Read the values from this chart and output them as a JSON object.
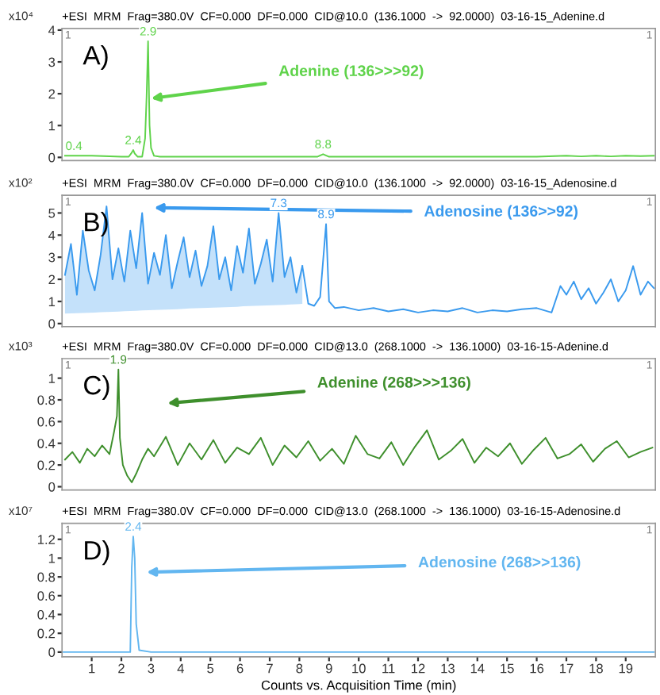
{
  "chart_data": [
    {
      "type": "line",
      "title": "+ESI  MRM  Frag=380.0V  CF=0.000  DF=0.000  CID@10.0  (136.1000  ->  92.0000)  03-16-15_Adenine.d",
      "ylabel": "x10⁴",
      "xlim": [
        0,
        20
      ],
      "ylim": [
        -0.1,
        4.05
      ],
      "yticks": [
        0,
        1,
        2,
        3,
        4
      ],
      "tick_labels": "y",
      "series": [
        {
          "color": "#5fd34a",
          "x": [
            0.1,
            0.4,
            1.0,
            2.0,
            2.25,
            2.35,
            2.4,
            2.45,
            2.55,
            2.7,
            2.8,
            2.85,
            2.9,
            2.95,
            3.0,
            3.1,
            3.3,
            4,
            5,
            6,
            7,
            8,
            8.6,
            8.8,
            9.0,
            10,
            12,
            14,
            16,
            17,
            17.5,
            18,
            18.5,
            19,
            19.5,
            19.95
          ],
          "values": [
            0.05,
            0.05,
            0.05,
            0.02,
            0.02,
            0.15,
            0.23,
            0.12,
            0.02,
            0.02,
            0.6,
            1.9,
            3.65,
            1.0,
            0.3,
            0.05,
            0.02,
            0.02,
            0.02,
            0.02,
            0.02,
            0.02,
            0.02,
            0.1,
            0.02,
            0.02,
            0.02,
            0.02,
            0.02,
            0.05,
            0.03,
            0.05,
            0.03,
            0.05,
            0.04,
            0.05
          ]
        }
      ],
      "annotations": [
        "1",
        "1",
        "A)",
        {
          "text": "Adenine (136>>>92)",
          "x": 3.0,
          "y": 1.85
        },
        {
          "text": "2.9",
          "x": 2.9,
          "y": 3.65
        },
        {
          "text": "2.4",
          "x": 2.4,
          "y": 0.23
        },
        {
          "text": "8.8",
          "x": 8.8,
          "y": 0.1
        },
        {
          "text": "0.4",
          "x": 0.4,
          "y": 0.05
        }
      ]
    },
    {
      "type": "line",
      "title": "+ESI  MRM  Frag=380.0V  CF=0.000  DF=0.000  CID@10.0  (136.1000  ->  92.0000)  03-16-15_Adenosine.d",
      "ylabel": "x10²",
      "xlim": [
        0,
        20
      ],
      "ylim": [
        -0.14,
        5.8
      ],
      "yticks": [
        0,
        1,
        2,
        3,
        4,
        5
      ],
      "tick_labels": "y",
      "series": [
        {
          "color": "#3a9aee",
          "x": [
            0.1,
            0.3,
            0.5,
            0.7,
            0.9,
            1.1,
            1.3,
            1.5,
            1.7,
            1.9,
            2.1,
            2.3,
            2.5,
            2.7,
            2.9,
            3.1,
            3.3,
            3.5,
            3.7,
            3.9,
            4.1,
            4.3,
            4.5,
            4.7,
            4.9,
            5.1,
            5.3,
            5.5,
            5.7,
            5.9,
            6.1,
            6.3,
            6.5,
            6.7,
            6.9,
            7.1,
            7.3,
            7.5,
            7.7,
            7.9,
            8.1
          ],
          "values": [
            2.2,
            3.6,
            1.3,
            4.2,
            2.4,
            1.5,
            3.1,
            5.3,
            2.0,
            3.4,
            1.9,
            4.2,
            2.5,
            5.0,
            1.8,
            3.2,
            2.2,
            4.0,
            1.6,
            2.8,
            3.9,
            2.1,
            3.3,
            1.7,
            2.6,
            4.4,
            2.0,
            3.0,
            1.5,
            3.5,
            2.3,
            4.3,
            1.8,
            2.7,
            3.8,
            1.9,
            5.0,
            2.1,
            3.0,
            1.4,
            2.6
          ],
          "upper": [
            2.2,
            3.6,
            1.3,
            4.2,
            2.4,
            1.5,
            3.1,
            5.3,
            2.0,
            3.4,
            1.9,
            4.2,
            2.5,
            5.0,
            1.8,
            3.2,
            2.2,
            4.0,
            1.6,
            2.8,
            3.9,
            2.1,
            3.3,
            1.7,
            2.6,
            4.4,
            2.0,
            3.0,
            1.5,
            3.5,
            2.3,
            4.3,
            1.8,
            2.7,
            3.8,
            1.9,
            5.0,
            2.1,
            3.0,
            1.4,
            2.6
          ],
          "lower": [
            0.45,
            0.46,
            0.47,
            0.48,
            0.49,
            0.5,
            0.51,
            0.52,
            0.53,
            0.54,
            0.56,
            0.57,
            0.58,
            0.59,
            0.6,
            0.61,
            0.62,
            0.63,
            0.64,
            0.65,
            0.67,
            0.68,
            0.69,
            0.7,
            0.71,
            0.72,
            0.73,
            0.74,
            0.75,
            0.76,
            0.78,
            0.79,
            0.8,
            0.81,
            0.82,
            0.83,
            0.84,
            0.85,
            0.86,
            0.87,
            0.89
          ]
        },
        {
          "color": "#3a9aee",
          "x": [
            8.1,
            8.3,
            8.5,
            8.7,
            8.9,
            9.0,
            9.2,
            9.5,
            10.0,
            10.5,
            11.0,
            11.5,
            12.0,
            12.5,
            13.0,
            13.5,
            14.0,
            14.5,
            15.0,
            15.5,
            16.0,
            16.5,
            16.8,
            17.0,
            17.25,
            17.5,
            17.75,
            18.0,
            18.25,
            18.5,
            18.75,
            19.0,
            19.25,
            19.5,
            19.75,
            19.95
          ],
          "values": [
            2.6,
            0.9,
            0.8,
            1.2,
            4.5,
            1.0,
            0.7,
            0.75,
            0.6,
            0.7,
            0.55,
            0.65,
            0.5,
            0.6,
            0.55,
            0.7,
            0.5,
            0.6,
            0.55,
            0.65,
            0.7,
            0.5,
            1.7,
            1.3,
            1.9,
            1.1,
            1.6,
            0.9,
            1.4,
            2.0,
            1.0,
            1.5,
            2.6,
            1.3,
            1.9,
            1.6
          ]
        }
      ],
      "annotations": [
        "1",
        "1",
        "B)",
        "Adenosine (136>>92)",
        {
          "text": "7.3",
          "x": 7.3,
          "y": 5.0
        },
        {
          "text": "8.9",
          "x": 8.9,
          "y": 4.5
        }
      ]
    },
    {
      "type": "line",
      "title": "+ESI  MRM  Frag=380.0V  CF=0.000  DF=0.000  CID@13.0  (268.1000  ->  136.1000)  03-16-15-Adenine.d",
      "ylabel": "x10³",
      "xlim": [
        0,
        20
      ],
      "ylim": [
        -0.03,
        1.18
      ],
      "yticks": [
        0,
        0.2,
        0.4,
        0.6,
        0.8,
        1
      ],
      "tick_labels": "y",
      "series": [
        {
          "color": "#3e8f2c",
          "x": [
            0.1,
            0.35,
            0.6,
            0.85,
            1.1,
            1.35,
            1.6,
            1.75,
            1.85,
            1.9,
            1.95,
            2.05,
            2.2,
            2.35,
            2.5,
            2.7,
            2.9,
            3.1,
            3.5,
            3.9,
            4.3,
            4.7,
            5.1,
            5.5,
            5.9,
            6.3,
            6.7,
            7.1,
            7.5,
            7.9,
            8.3,
            8.7,
            9.1,
            9.5,
            9.9,
            10.3,
            10.7,
            11.1,
            11.5,
            11.9,
            12.3,
            12.7,
            13.1,
            13.5,
            13.9,
            14.3,
            14.7,
            15.1,
            15.5,
            15.9,
            16.3,
            16.7,
            17.1,
            17.5,
            17.9,
            18.3,
            18.7,
            19.1,
            19.5,
            19.9
          ],
          "values": [
            0.25,
            0.32,
            0.22,
            0.35,
            0.28,
            0.38,
            0.3,
            0.5,
            0.65,
            1.08,
            0.45,
            0.2,
            0.1,
            0.04,
            0.12,
            0.25,
            0.35,
            0.28,
            0.46,
            0.2,
            0.4,
            0.25,
            0.43,
            0.22,
            0.36,
            0.3,
            0.45,
            0.2,
            0.38,
            0.27,
            0.42,
            0.24,
            0.35,
            0.21,
            0.47,
            0.3,
            0.26,
            0.41,
            0.2,
            0.37,
            0.52,
            0.25,
            0.33,
            0.44,
            0.22,
            0.36,
            0.28,
            0.4,
            0.21,
            0.34,
            0.45,
            0.26,
            0.3,
            0.39,
            0.23,
            0.35,
            0.42,
            0.27,
            0.32,
            0.36
          ]
        }
      ],
      "annotations": [
        "1",
        "1",
        "C)",
        "Adenine (268>>>136)",
        {
          "text": "1.9",
          "x": 1.9,
          "y": 1.08
        }
      ]
    },
    {
      "type": "line",
      "title": "+ESI  MRM  Frag=380.0V  CF=0.000  DF=0.000  CID@13.0  (268.1000  ->  136.1000)  03-16-15-Adenosine.d",
      "ylabel": "x10⁷",
      "xlabel": "Counts vs. Acquisition Time (min)",
      "xlim": [
        0,
        20
      ],
      "xticks": [
        1,
        2,
        3,
        4,
        5,
        6,
        7,
        8,
        9,
        10,
        11,
        12,
        13,
        14,
        15,
        16,
        17,
        18,
        19
      ],
      "ylim": [
        -0.05,
        1.37
      ],
      "yticks": [
        0,
        0.2,
        0.4,
        0.6,
        0.8,
        1,
        1.2
      ],
      "series": [
        {
          "color": "#62b6f0",
          "x": [
            0.05,
            1,
            2,
            2.3,
            2.35,
            2.4,
            2.45,
            2.5,
            2.6,
            3,
            5,
            10,
            15,
            19.95
          ],
          "values": [
            0,
            0,
            0,
            0,
            0.9,
            1.23,
            1.0,
            0.3,
            0.02,
            0,
            0,
            0,
            0,
            0
          ]
        }
      ],
      "annotations": [
        "1",
        "1",
        "D)",
        "Adenosine (268>>136)",
        {
          "text": "2.4",
          "x": 2.4,
          "y": 1.23
        }
      ]
    }
  ]
}
